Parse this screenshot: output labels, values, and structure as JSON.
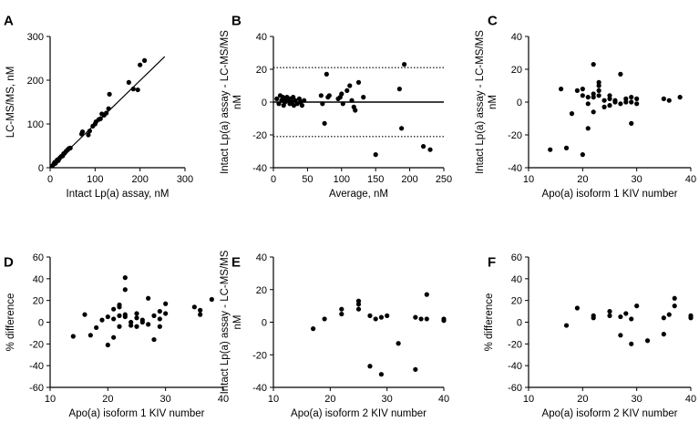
{
  "chart_data": [
    {
      "panel": "A",
      "type": "scatter",
      "xlabel": "Intact Lp(a) assay, nM",
      "ylabel": "LC-MS/MS, nM",
      "xlim": [
        0,
        300
      ],
      "ylim": [
        0,
        300
      ],
      "xticks": [
        "0",
        "100",
        "200",
        "300"
      ],
      "yticks": [
        "0",
        "100",
        "200",
        "300"
      ],
      "line": [
        [
          0,
          0
        ],
        [
          255,
          254
        ]
      ],
      "points": [
        [
          5,
          4
        ],
        [
          8,
          8
        ],
        [
          10,
          12
        ],
        [
          12,
          10
        ],
        [
          14,
          15
        ],
        [
          16,
          18
        ],
        [
          18,
          16
        ],
        [
          20,
          20
        ],
        [
          22,
          23
        ],
        [
          25,
          26
        ],
        [
          28,
          27
        ],
        [
          30,
          32
        ],
        [
          32,
          33
        ],
        [
          35,
          37
        ],
        [
          38,
          40
        ],
        [
          40,
          42
        ],
        [
          42,
          44
        ],
        [
          45,
          45
        ],
        [
          70,
          77
        ],
        [
          72,
          82
        ],
        [
          85,
          75
        ],
        [
          88,
          84
        ],
        [
          95,
          95
        ],
        [
          100,
          100
        ],
        [
          102,
          105
        ],
        [
          108,
          110
        ],
        [
          112,
          112
        ],
        [
          115,
          123
        ],
        [
          120,
          120
        ],
        [
          125,
          125
        ],
        [
          130,
          135
        ],
        [
          132,
          168
        ],
        [
          175,
          195
        ],
        [
          185,
          180
        ],
        [
          195,
          178
        ],
        [
          200,
          235
        ],
        [
          210,
          245
        ]
      ]
    },
    {
      "panel": "B",
      "type": "scatter",
      "xlabel": "Average, nM",
      "ylabel": "Intact Lp(a) assay - LC-MS/MS, nM",
      "xlim": [
        0,
        250
      ],
      "ylim": [
        -40,
        40
      ],
      "xticks": [
        "0",
        "50",
        "100",
        "150",
        "200",
        "250"
      ],
      "yticks": [
        "-40",
        "-20",
        "0",
        "20",
        "40"
      ],
      "hlines": [
        {
          "y": 0,
          "style": "solid"
        },
        {
          "y": 21,
          "style": "dotted"
        },
        {
          "y": -21,
          "style": "dotted"
        }
      ],
      "points": [
        [
          5,
          2
        ],
        [
          8,
          -1
        ],
        [
          10,
          4
        ],
        [
          12,
          1
        ],
        [
          14,
          3
        ],
        [
          15,
          -2
        ],
        [
          17,
          0
        ],
        [
          18,
          2
        ],
        [
          20,
          3
        ],
        [
          22,
          1
        ],
        [
          24,
          -1
        ],
        [
          25,
          2
        ],
        [
          27,
          0
        ],
        [
          29,
          3
        ],
        [
          30,
          -2
        ],
        [
          32,
          1
        ],
        [
          35,
          -1
        ],
        [
          38,
          2
        ],
        [
          40,
          0
        ],
        [
          42,
          -2
        ],
        [
          45,
          1
        ],
        [
          70,
          4
        ],
        [
          72,
          -1
        ],
        [
          75,
          -13
        ],
        [
          78,
          17
        ],
        [
          80,
          3
        ],
        [
          82,
          4
        ],
        [
          95,
          2
        ],
        [
          98,
          3
        ],
        [
          100,
          5
        ],
        [
          102,
          -1
        ],
        [
          108,
          7
        ],
        [
          112,
          10
        ],
        [
          115,
          1
        ],
        [
          118,
          -3
        ],
        [
          120,
          -5
        ],
        [
          125,
          12
        ],
        [
          132,
          3
        ],
        [
          150,
          -32
        ],
        [
          185,
          8
        ],
        [
          188,
          -16
        ],
        [
          192,
          23
        ],
        [
          220,
          -27
        ],
        [
          230,
          -29
        ]
      ]
    },
    {
      "panel": "C",
      "type": "scatter",
      "xlabel": "Apo(a) isoform 1 KIV number",
      "ylabel": "Intact Lp(a) assay - LC-MS/MS, nM",
      "xlim": [
        10,
        40
      ],
      "ylim": [
        -40,
        40
      ],
      "xticks": [
        "10",
        "20",
        "30",
        "40"
      ],
      "yticks": [
        "-40",
        "-20",
        "0",
        "20",
        "40"
      ],
      "points": [
        [
          14,
          -29
        ],
        [
          16,
          8
        ],
        [
          17,
          -28
        ],
        [
          18,
          -7
        ],
        [
          19,
          7
        ],
        [
          20,
          -32
        ],
        [
          20,
          4
        ],
        [
          20,
          8
        ],
        [
          21,
          3
        ],
        [
          21,
          -1
        ],
        [
          21,
          -16
        ],
        [
          22,
          5
        ],
        [
          22,
          23
        ],
        [
          22,
          3
        ],
        [
          22,
          -6
        ],
        [
          23,
          12
        ],
        [
          23,
          10
        ],
        [
          23,
          4
        ],
        [
          23,
          7
        ],
        [
          24,
          -3
        ],
        [
          24,
          1
        ],
        [
          25,
          4
        ],
        [
          25,
          2
        ],
        [
          25,
          -2
        ],
        [
          26,
          1
        ],
        [
          26,
          0
        ],
        [
          27,
          17
        ],
        [
          27,
          -1
        ],
        [
          28,
          2
        ],
        [
          28,
          0
        ],
        [
          29,
          -13
        ],
        [
          29,
          3
        ],
        [
          29,
          0
        ],
        [
          30,
          2
        ],
        [
          30,
          -1
        ],
        [
          35,
          2
        ],
        [
          36,
          1
        ],
        [
          38,
          3
        ]
      ]
    },
    {
      "panel": "D",
      "type": "scatter",
      "xlabel": "Apo(a) isoform 1 KIV number",
      "ylabel": "% difference",
      "xlim": [
        10,
        40
      ],
      "ylim": [
        -60,
        60
      ],
      "xticks": [
        "10",
        "20",
        "30",
        "40"
      ],
      "yticks": [
        "-60",
        "-40",
        "-20",
        "0",
        "20",
        "40",
        "60"
      ],
      "points": [
        [
          14,
          -13
        ],
        [
          16,
          7
        ],
        [
          17,
          -12
        ],
        [
          18,
          -5
        ],
        [
          19,
          2
        ],
        [
          20,
          -21
        ],
        [
          20,
          5
        ],
        [
          21,
          12
        ],
        [
          21,
          3
        ],
        [
          21,
          -14
        ],
        [
          22,
          6
        ],
        [
          22,
          16
        ],
        [
          22,
          14
        ],
        [
          22,
          -4
        ],
        [
          23,
          41
        ],
        [
          23,
          30
        ],
        [
          23,
          7
        ],
        [
          23,
          5
        ],
        [
          24,
          -3
        ],
        [
          24,
          0
        ],
        [
          25,
          8
        ],
        [
          25,
          4
        ],
        [
          25,
          -4
        ],
        [
          26,
          2
        ],
        [
          26,
          0
        ],
        [
          27,
          22
        ],
        [
          27,
          -2
        ],
        [
          28,
          6
        ],
        [
          28,
          -16
        ],
        [
          29,
          10
        ],
        [
          29,
          3
        ],
        [
          29,
          -4
        ],
        [
          30,
          17
        ],
        [
          30,
          8
        ],
        [
          35,
          14
        ],
        [
          36,
          7
        ],
        [
          36,
          11
        ],
        [
          38,
          21
        ]
      ]
    },
    {
      "panel": "E",
      "type": "scatter",
      "xlabel": "Apo(a) isoform 2 KIV number",
      "ylabel": "Intact Lp(a) assay - LC-MS/MS, nM",
      "xlim": [
        10,
        40
      ],
      "ylim": [
        -40,
        40
      ],
      "xticks": [
        "10",
        "20",
        "30",
        "40"
      ],
      "yticks": [
        "-40",
        "-20",
        "0",
        "20",
        "40"
      ],
      "points": [
        [
          17,
          -4
        ],
        [
          19,
          2
        ],
        [
          22,
          8
        ],
        [
          22,
          5
        ],
        [
          25,
          13
        ],
        [
          25,
          8
        ],
        [
          25,
          11
        ],
        [
          27,
          4
        ],
        [
          27,
          -27
        ],
        [
          28,
          2
        ],
        [
          29,
          -32
        ],
        [
          29,
          3
        ],
        [
          30,
          4
        ],
        [
          32,
          -13
        ],
        [
          35,
          3
        ],
        [
          35,
          -29
        ],
        [
          36,
          2
        ],
        [
          37,
          17
        ],
        [
          37,
          2
        ],
        [
          40,
          1
        ],
        [
          40,
          2
        ]
      ]
    },
    {
      "panel": "F",
      "type": "scatter",
      "xlabel": "Apo(a) isoform 2 KIV number",
      "ylabel": "% difference",
      "xlim": [
        10,
        40
      ],
      "ylim": [
        -60,
        60
      ],
      "xticks": [
        "10",
        "20",
        "30",
        "40"
      ],
      "yticks": [
        "-60",
        "-40",
        "-20",
        "0",
        "20",
        "40",
        "60"
      ],
      "points": [
        [
          17,
          -3
        ],
        [
          19,
          13
        ],
        [
          22,
          6
        ],
        [
          22,
          4
        ],
        [
          25,
          10
        ],
        [
          25,
          6
        ],
        [
          27,
          5
        ],
        [
          27,
          -12
        ],
        [
          28,
          8
        ],
        [
          29,
          -20
        ],
        [
          29,
          3
        ],
        [
          30,
          15
        ],
        [
          32,
          -17
        ],
        [
          35,
          -11
        ],
        [
          35,
          4
        ],
        [
          36,
          7
        ],
        [
          37,
          15
        ],
        [
          37,
          22
        ],
        [
          40,
          4
        ],
        [
          40,
          6
        ]
      ]
    }
  ]
}
